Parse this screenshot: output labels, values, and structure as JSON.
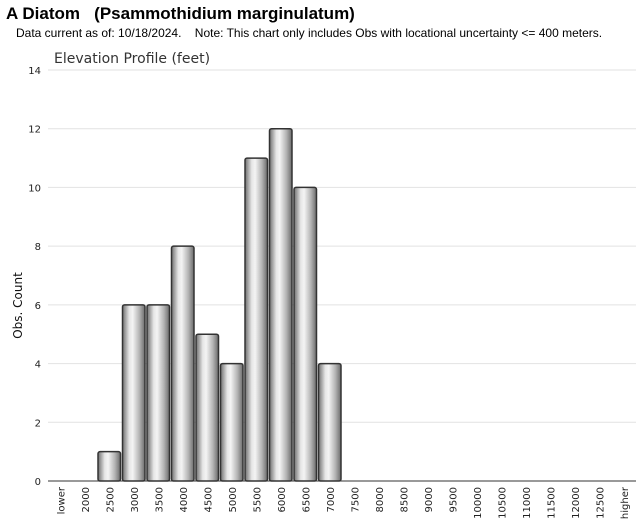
{
  "header": {
    "title": "A Diatom   (Psammothidium marginulatum)",
    "subtitle": "Data current as of: 10/18/2024.    Note: This chart only includes Obs with locational uncertainty <= 400 meters."
  },
  "chart_data": {
    "type": "bar",
    "title": "Elevation Profile (feet)",
    "xlabel": "",
    "ylabel": "Obs. Count",
    "ylim": [
      0,
      14
    ],
    "yticks": [
      0,
      2,
      4,
      6,
      8,
      10,
      12,
      14
    ],
    "grid": true,
    "categories": [
      "lower",
      "2000",
      "2500",
      "3000",
      "3500",
      "4000",
      "4500",
      "5000",
      "5500",
      "6000",
      "6500",
      "7000",
      "7500",
      "8000",
      "8500",
      "9000",
      "9500",
      "10000",
      "10500",
      "11000",
      "11500",
      "12000",
      "12500",
      "higher"
    ],
    "values": [
      0,
      0,
      1,
      6,
      6,
      8,
      5,
      4,
      11,
      12,
      10,
      4,
      0,
      0,
      0,
      0,
      0,
      0,
      0,
      0,
      0,
      0,
      0,
      0
    ],
    "bar_color": "#a8a8a8",
    "bar_edge_color": "#333333"
  }
}
